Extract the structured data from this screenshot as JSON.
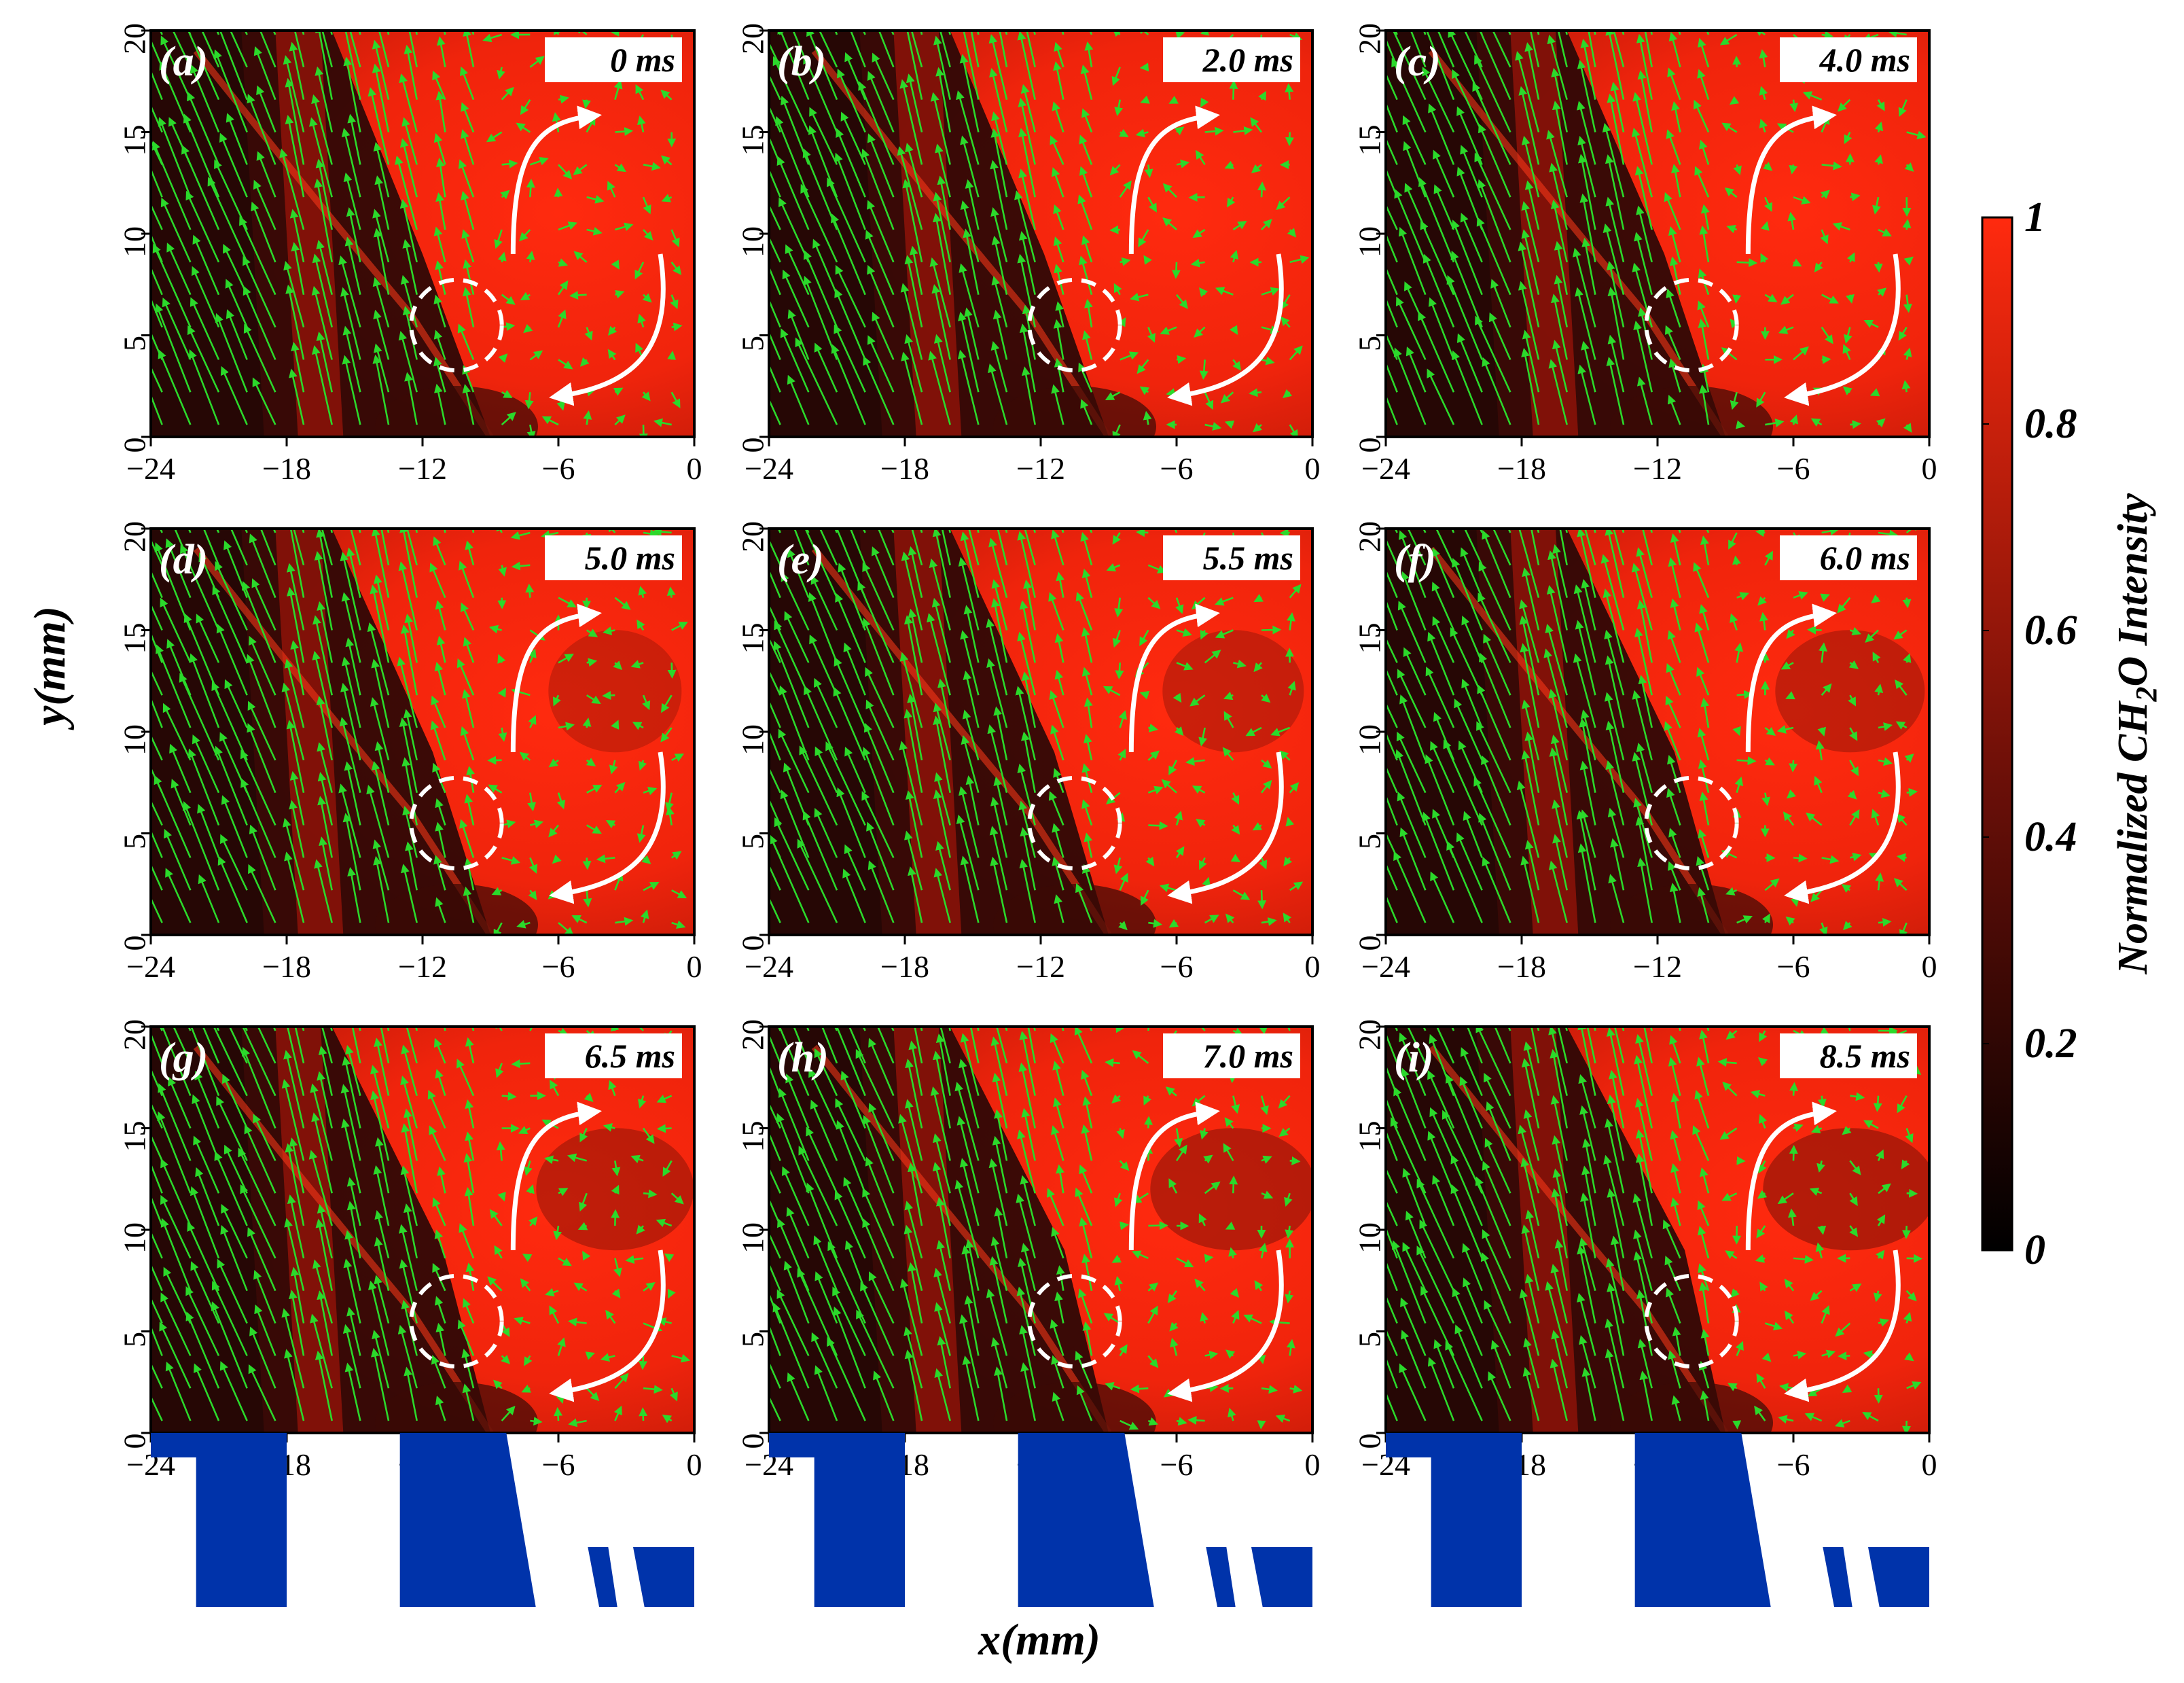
{
  "figure": {
    "x_axis_label": "x",
    "x_axis_unit": "mm",
    "y_axis_label": "y",
    "y_axis_unit": "mm",
    "colorbar_label": "Normalized CH2O Intensity",
    "colorbar_ticks": [
      "0",
      "0.2",
      "0.4",
      "0.6",
      "0.8",
      "1"
    ],
    "colors": {
      "flame_red": "#ff2a0e",
      "dark_region": "#1a0605",
      "velocity_vectors": "#2bd92b",
      "annotation_white": "#ffffff",
      "geometry_blue": "#0033aa"
    }
  },
  "chart_data": {
    "type": "heatmap",
    "layout": "3x3 grid of PLIF images with velocity vectors",
    "panels": [
      {
        "label": "(a)",
        "time": "0 ms"
      },
      {
        "label": "(b)",
        "time": "2.0 ms"
      },
      {
        "label": "(c)",
        "time": "4.0 ms"
      },
      {
        "label": "(d)",
        "time": "5.0 ms"
      },
      {
        "label": "(e)",
        "time": "5.5 ms"
      },
      {
        "label": "(f)",
        "time": "6.0 ms"
      },
      {
        "label": "(g)",
        "time": "6.5 ms"
      },
      {
        "label": "(h)",
        "time": "7.0 ms"
      },
      {
        "label": "(i)",
        "time": "8.5 ms"
      }
    ],
    "x_ticks": [
      "-24",
      "-18",
      "-12",
      "-6",
      "0"
    ],
    "x_tick_values": [
      -24,
      -18,
      -12,
      -6,
      0
    ],
    "y_ticks": [
      "0",
      "5",
      "10",
      "15",
      "20"
    ],
    "y_tick_values": [
      0,
      5,
      10,
      15,
      20
    ],
    "xlim": [
      -24,
      0
    ],
    "ylim": [
      0,
      20
    ],
    "colorbar": {
      "min": 0,
      "max": 1,
      "colors": [
        "#000000",
        "#ff2a0e"
      ]
    },
    "annotations": {
      "dashed_circle_center": [
        -10.5,
        5.5
      ],
      "dashed_circle_radius": 2
    },
    "grid": false
  }
}
